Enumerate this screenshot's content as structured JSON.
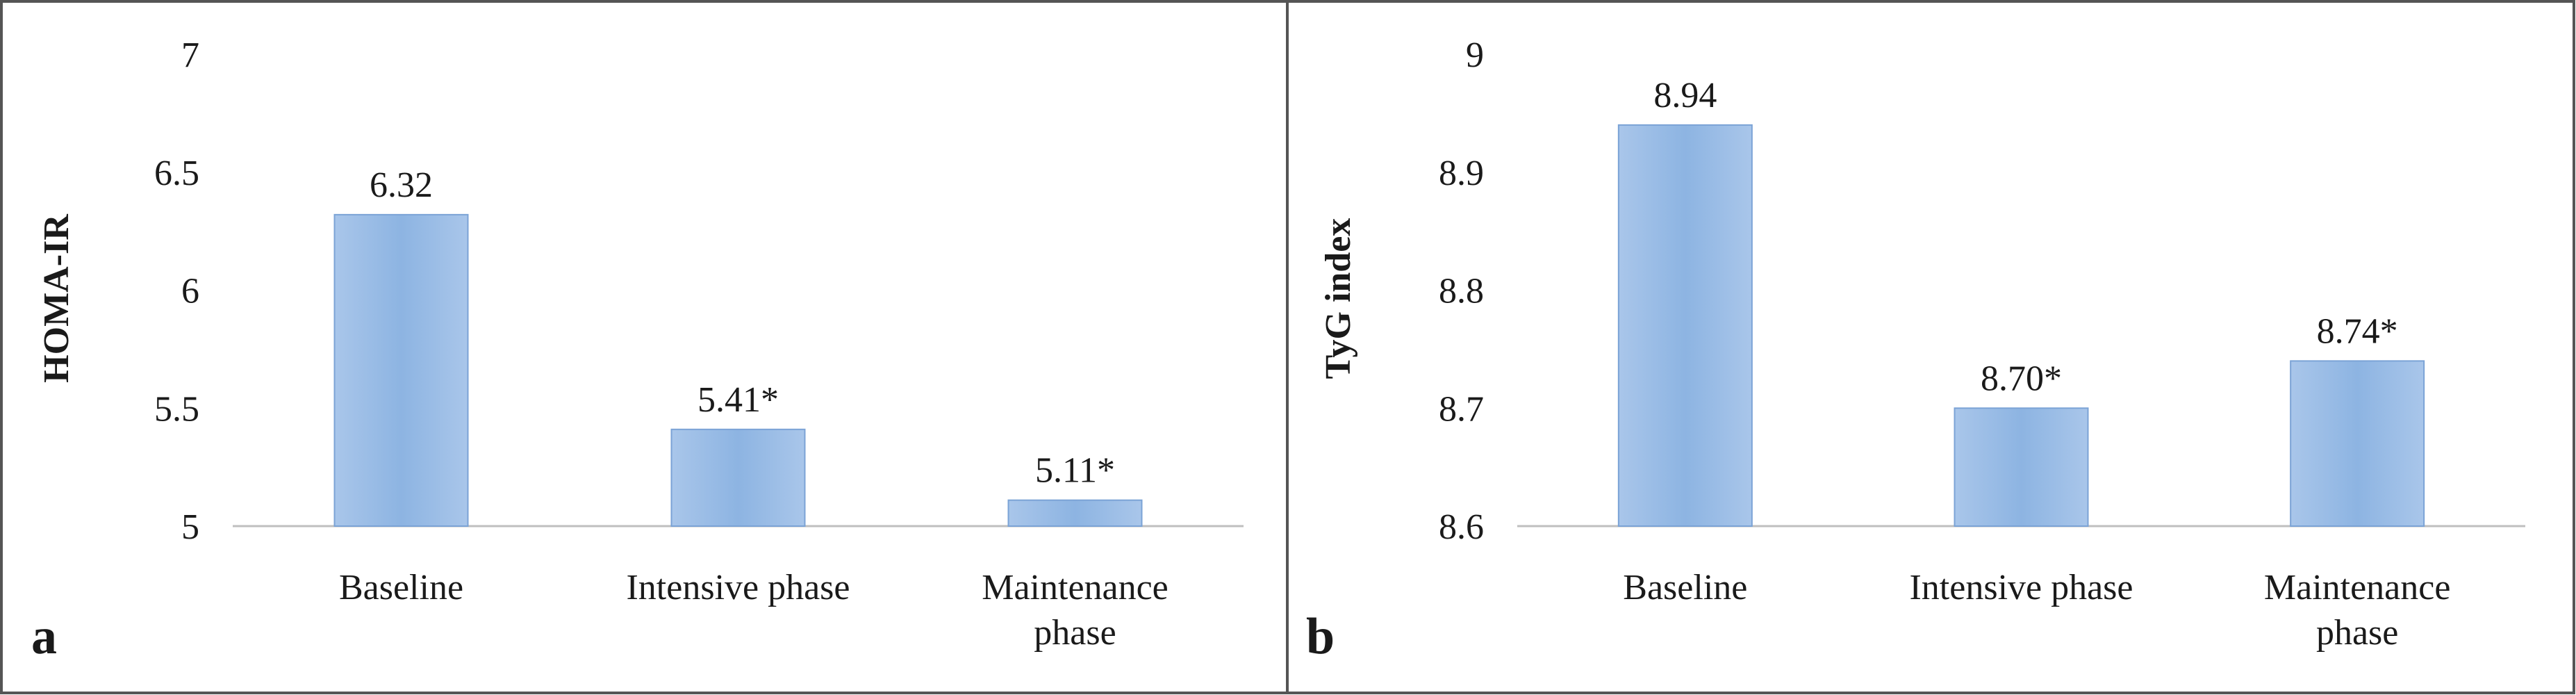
{
  "chart_data": [
    {
      "type": "bar",
      "panel_label": "a",
      "title": "",
      "xlabel": "",
      "ylabel": "HOMA-IR",
      "ylim": [
        5,
        7
      ],
      "yticks": [
        "5",
        "5.5",
        "6",
        "6.5",
        "7"
      ],
      "ytick_values": [
        5,
        5.5,
        6,
        6.5,
        7
      ],
      "categories": [
        [
          "Baseline"
        ],
        [
          "Intensive phase"
        ],
        [
          "Maintenance",
          "phase"
        ]
      ],
      "values": [
        6.32,
        5.41,
        5.11
      ],
      "data_labels": [
        "6.32",
        "5.41*",
        "5.11*"
      ],
      "bar_color": "#8db4e2"
    },
    {
      "type": "bar",
      "panel_label": "b",
      "title": "",
      "xlabel": "",
      "ylabel": "TyG index",
      "ylim": [
        8.6,
        9
      ],
      "yticks": [
        "8.6",
        "8.7",
        "8.8",
        "8.9",
        "9"
      ],
      "ytick_values": [
        8.6,
        8.7,
        8.8,
        8.9,
        9
      ],
      "categories": [
        [
          "Baseline"
        ],
        [
          "Intensive phase"
        ],
        [
          "Maintenance",
          "phase"
        ]
      ],
      "values": [
        8.94,
        8.7,
        8.74
      ],
      "data_labels": [
        "8.94",
        "8.70*",
        "8.74*"
      ],
      "bar_color": "#8db4e2"
    }
  ]
}
